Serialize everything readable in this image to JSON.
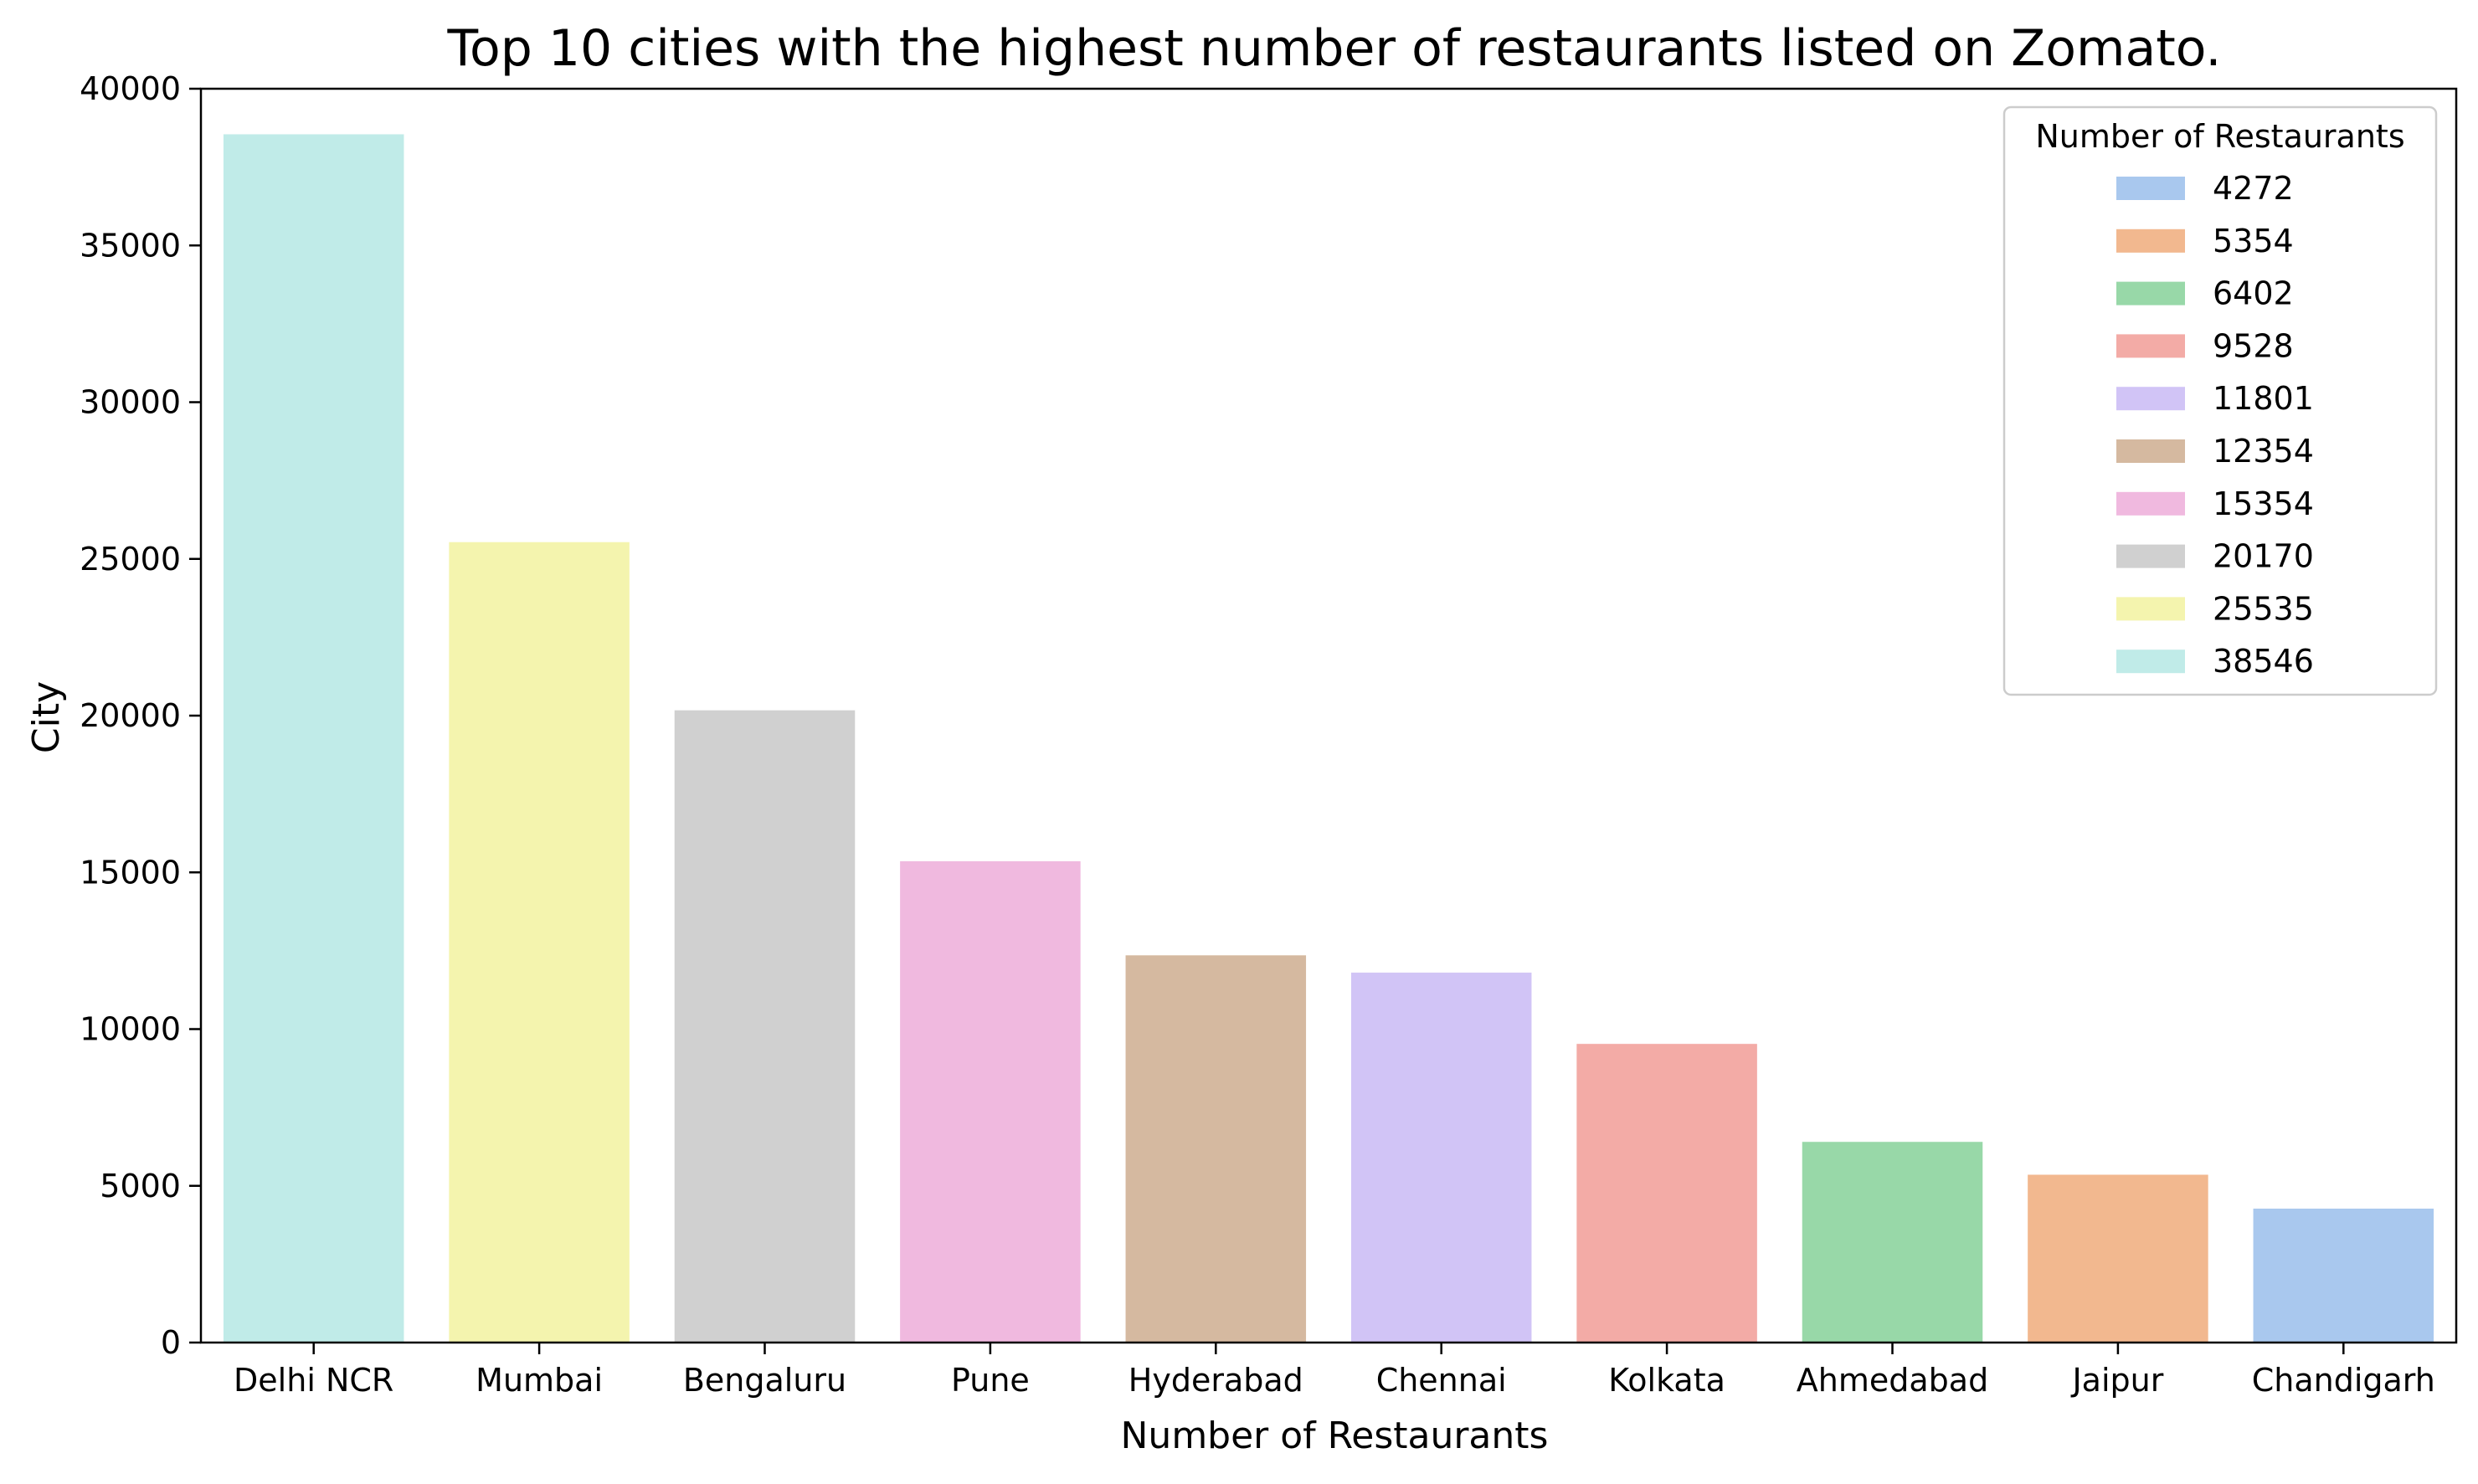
{
  "chart_data": {
    "type": "bar",
    "title": "Top 10 cities with the highest number of restaurants listed on Zomato.",
    "xlabel": "Number of Restaurants",
    "ylabel": "City",
    "categories": [
      "Delhi NCR",
      "Mumbai",
      "Bengaluru",
      "Pune",
      "Hyderabad",
      "Chennai",
      "Kolkata",
      "Ahmedabad",
      "Jaipur",
      "Chandigarh"
    ],
    "values": [
      38546,
      25535,
      20170,
      15354,
      12354,
      11801,
      9528,
      6402,
      5354,
      4272
    ],
    "colors": [
      "#c0ebe8",
      "#f4f4ae",
      "#d0d0d0",
      "#f0b9df",
      "#d5b9a0",
      "#d1c4f6",
      "#f3aba6",
      "#98d8a8",
      "#f2b88f",
      "#a9c8ee"
    ],
    "ylim": [
      0,
      40000
    ],
    "yticks": [
      "0",
      "5000",
      "10000",
      "15000",
      "20000",
      "25000",
      "30000",
      "35000",
      "40000"
    ],
    "grid": false,
    "legend": {
      "title": "Number of Restaurants",
      "placement": "top-right",
      "entries": [
        {
          "label": "4272",
          "color": "#a9c8ee"
        },
        {
          "label": "5354",
          "color": "#f2b88f"
        },
        {
          "label": "6402",
          "color": "#98d8a8"
        },
        {
          "label": "9528",
          "color": "#f3aba6"
        },
        {
          "label": "11801",
          "color": "#d1c4f6"
        },
        {
          "label": "12354",
          "color": "#d5b9a0"
        },
        {
          "label": "15354",
          "color": "#f0b9df"
        },
        {
          "label": "20170",
          "color": "#d0d0d0"
        },
        {
          "label": "25535",
          "color": "#f4f4ae"
        },
        {
          "label": "38546",
          "color": "#c0ebe8"
        }
      ]
    }
  }
}
